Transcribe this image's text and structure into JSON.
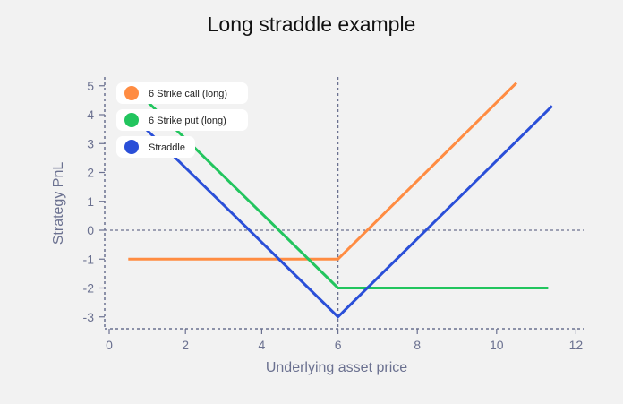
{
  "chart_data": {
    "type": "line",
    "title": "Long straddle example",
    "xlabel": "Underlying asset price",
    "ylabel": "Strategy PnL",
    "xlim": [
      -0.1,
      12.2
    ],
    "ylim": [
      -3.3,
      5.3
    ],
    "xticks": [
      0,
      2,
      4,
      6,
      8,
      10,
      12
    ],
    "yticks": [
      -3,
      -2,
      -1,
      0,
      1,
      2,
      3,
      4,
      5
    ],
    "reference_lines": {
      "x": 6,
      "y": 0
    },
    "legend_position": "top-left",
    "series": [
      {
        "name": "6 Strike call (long)",
        "color": "#ff8c42",
        "points": [
          [
            0.5,
            -1
          ],
          [
            6,
            -1
          ],
          [
            10.5,
            5.1
          ]
        ]
      },
      {
        "name": "6 Strike put (long)",
        "color": "#22c55e",
        "points": [
          [
            0.5,
            5.1
          ],
          [
            6,
            -2
          ],
          [
            11.3,
            -2
          ]
        ]
      },
      {
        "name": "Straddle",
        "color": "#2a4fd8",
        "points": [
          [
            0.5,
            4.1
          ],
          [
            6,
            -3
          ],
          [
            11.4,
            4.3
          ]
        ]
      }
    ]
  }
}
